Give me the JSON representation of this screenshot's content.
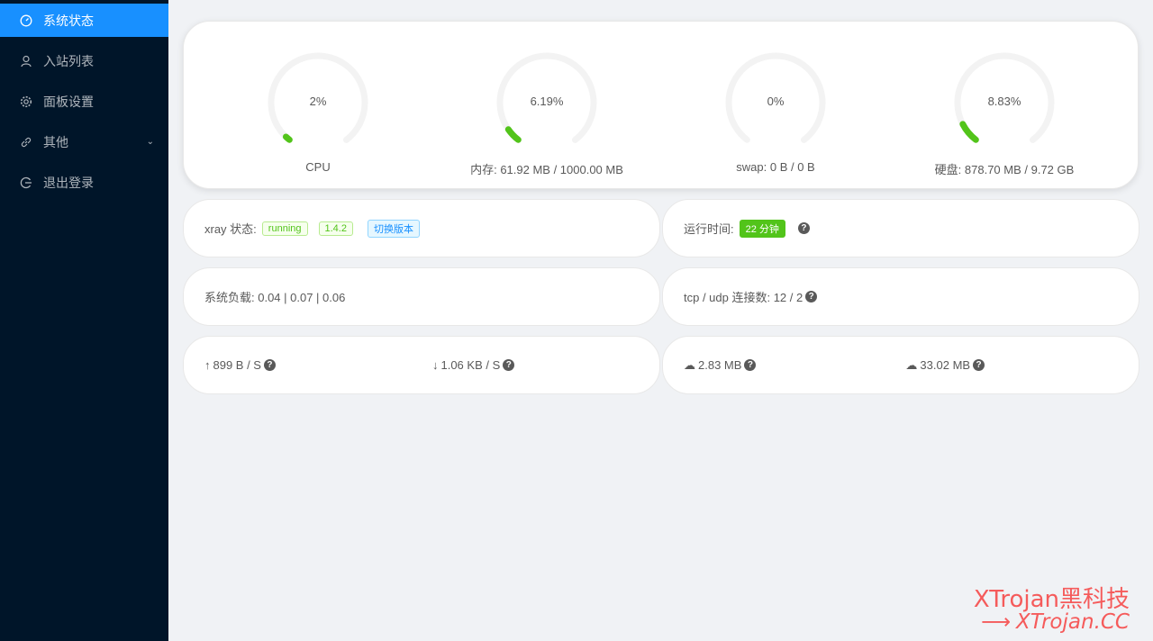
{
  "sidebar": {
    "items": [
      {
        "label": "系统状态",
        "icon": "dashboard-icon",
        "active": true
      },
      {
        "label": "入站列表",
        "icon": "user-icon"
      },
      {
        "label": "面板设置",
        "icon": "gear-icon"
      },
      {
        "label": "其他",
        "icon": "link-icon",
        "submenu": true
      },
      {
        "label": "退出登录",
        "icon": "logout-icon"
      }
    ]
  },
  "gauges": [
    {
      "percent": 2,
      "text": "2%",
      "label": "CPU"
    },
    {
      "percent": 6.19,
      "text": "6.19%",
      "label": "内存: 61.92 MB / 1000.00 MB"
    },
    {
      "percent": 0,
      "text": "0%",
      "label": "swap: 0 B / 0 B"
    },
    {
      "percent": 8.83,
      "text": "8.83%",
      "label": "硬盘: 878.70 MB / 9.72 GB"
    }
  ],
  "gauge_color": "#52c41a",
  "xray": {
    "label": "xray 状态:",
    "status": "running",
    "version": "1.4.2",
    "switch": "切换版本"
  },
  "uptime": {
    "label": "运行时间:",
    "value": "22 分钟"
  },
  "load": {
    "text": "系统负载: 0.04 | 0.07 | 0.06"
  },
  "conn": {
    "text": "tcp / udp 连接数: 12 / 2"
  },
  "speed": {
    "up": "899 B / S",
    "down": "1.06 KB / S"
  },
  "traffic": {
    "sent": "2.83 MB",
    "recv": "33.02 MB"
  },
  "watermark": {
    "line1": "XTrojan黑科技",
    "line2": "XTrojan.CC",
    "arrow": "⟶"
  }
}
